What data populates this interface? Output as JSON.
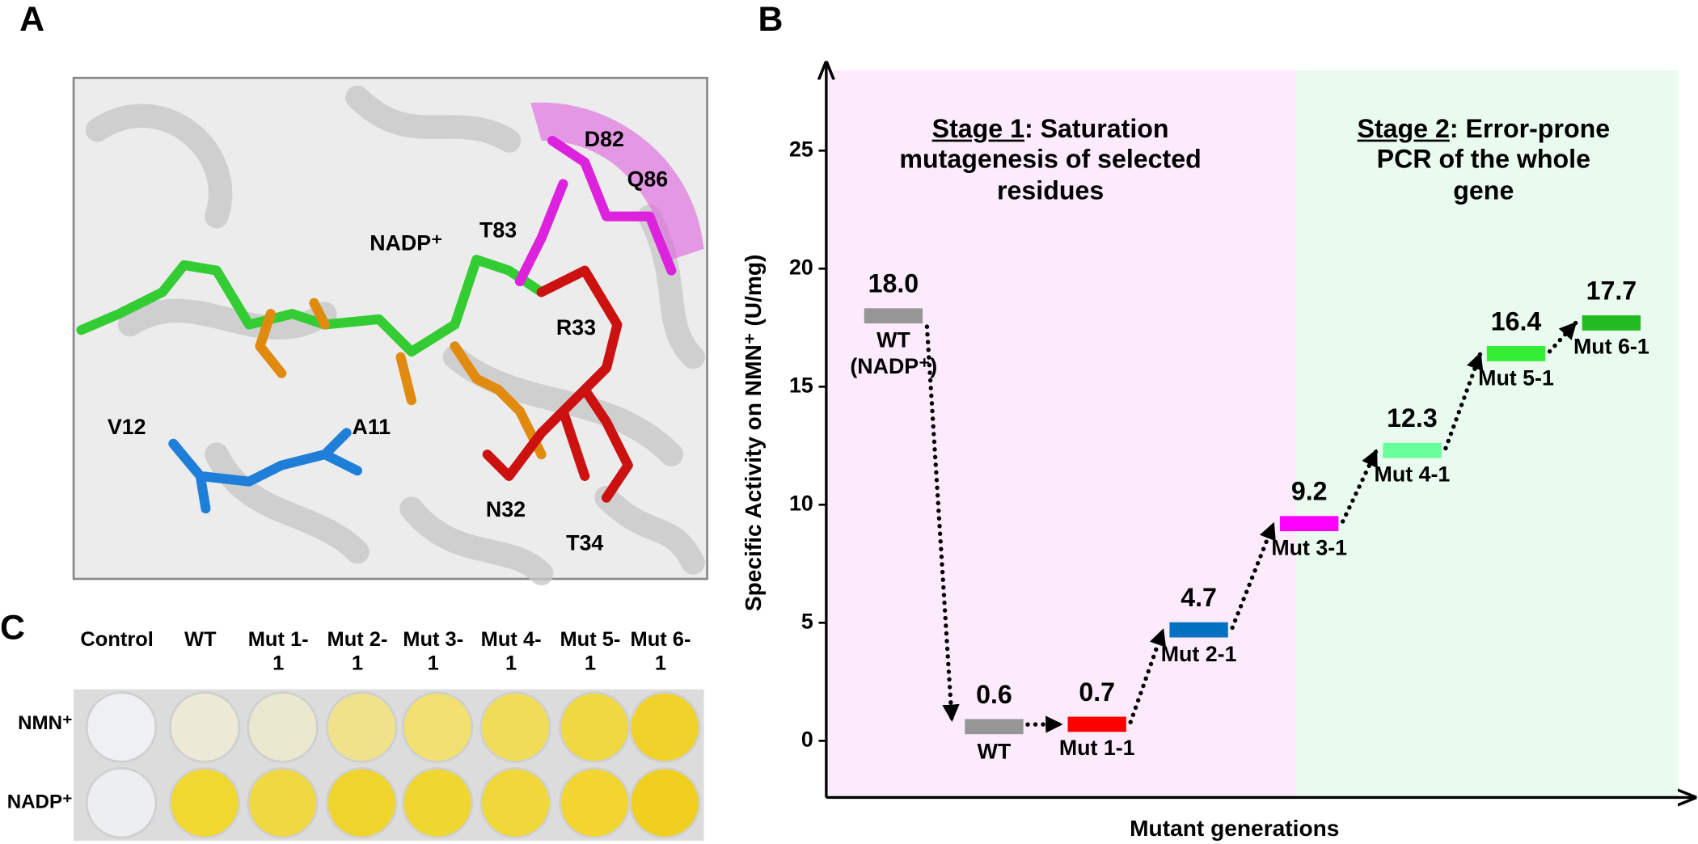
{
  "panel_a": {
    "label": "A",
    "residues": [
      "D82",
      "Q86",
      "NADP⁺",
      "T83",
      "R33",
      "V12",
      "A11",
      "N32",
      "T34"
    ]
  },
  "panel_c": {
    "label": "C",
    "columns": [
      "Control",
      "WT",
      "Mut 1-1",
      "Mut 2-1",
      "Mut 3-1",
      "Mut 4-1",
      "Mut 5-1",
      "Mut 6-1"
    ],
    "rows": [
      "NMN⁺",
      "NADP⁺"
    ],
    "well_colors": [
      [
        "#eef0f2",
        "#ece9d6",
        "#ebe8d0",
        "#f0e28a",
        "#f2e070",
        "#f1dc5a",
        "#f0d940",
        "#f1d22a"
      ],
      [
        "#eceef0",
        "#f1d830",
        "#efd842",
        "#f0d42e",
        "#efd630",
        "#f0d83a",
        "#f2d530",
        "#f0cf20"
      ]
    ]
  },
  "chart_data": {
    "type": "level",
    "panel_label": "B",
    "x_label": "Mutant generations",
    "y_label": "Specific Activity  on NMN⁺ (U/mg)",
    "categories": [
      "WT (NADP⁺)",
      "WT",
      "Mut 1-1",
      "Mut 2-1",
      "Mut 3-1",
      "Mut 4-1",
      "Mut 5-1",
      "Mut 6-1"
    ],
    "values": [
      18.0,
      0.6,
      0.7,
      4.7,
      9.2,
      12.3,
      16.4,
      17.7
    ],
    "value_labels": [
      "18.0",
      "0.6",
      "0.7",
      "4.7",
      "9.2",
      "12.3",
      "16.4",
      "17.7"
    ],
    "colors": [
      "#969696",
      "#969696",
      "#ff0000",
      "#0070c0",
      "#ff00ff",
      "#66ff99",
      "#33ee33",
      "#22bb22"
    ],
    "regions": [
      {
        "title": "Stage 1",
        "text": ": Saturation mutagenesis of selected residues",
        "color": "#fcebfc"
      },
      {
        "title": "Stage 2",
        "text": ": Error-prone PCR of the whole gene",
        "color": "#e9fbef"
      }
    ],
    "ylim": [
      -2.4,
      28.4
    ],
    "yticks": [
      0,
      5,
      10,
      15,
      20,
      25
    ]
  }
}
